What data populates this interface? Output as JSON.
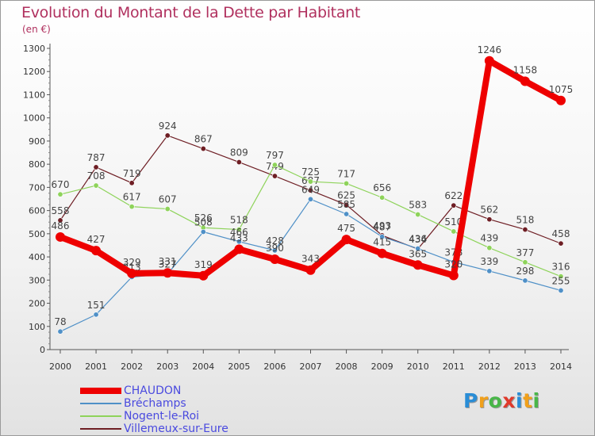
{
  "title": "Evolution du Montant de la Dette par Habitant",
  "unit_label": "(en €)",
  "chart_data": {
    "type": "line",
    "x": [
      2000,
      2001,
      2002,
      2003,
      2004,
      2005,
      2006,
      2007,
      2008,
      2009,
      2010,
      2011,
      2012,
      2013,
      2014
    ],
    "ylim": [
      0,
      1300
    ],
    "yticks": [
      0,
      100,
      200,
      300,
      400,
      500,
      600,
      700,
      800,
      900,
      1000,
      1100,
      1200,
      1300
    ],
    "grid": false,
    "legend_position": "bottom-left",
    "series": [
      {
        "name": "Villemeux-sur-Eure",
        "color": "#6e1e24",
        "values": [
          558,
          787,
          719,
          924,
          867,
          809,
          749,
          687,
          625,
          493,
          434,
          622,
          562,
          518,
          458
        ]
      },
      {
        "name": "Nogent-le-Roi",
        "color": "#8ed35a",
        "values": [
          670,
          708,
          617,
          607,
          526,
          518,
          797,
          725,
          717,
          656,
          583,
          510,
          439,
          377,
          316
        ]
      },
      {
        "name": "Bréchamps",
        "color": "#4f90c7",
        "values": [
          78,
          151,
          313,
          327,
          508,
          466,
          428,
          649,
          585,
          487,
          436,
          378,
          339,
          298,
          255
        ]
      },
      {
        "name": "CHAUDON",
        "color": "#ee0000",
        "values": [
          486,
          427,
          329,
          331,
          319,
          433,
          390,
          343,
          475,
          415,
          365,
          320,
          1246,
          1158,
          1075
        ]
      }
    ]
  },
  "logo": {
    "letters": [
      "P",
      "r",
      "o",
      "x",
      "i",
      "t",
      "i"
    ],
    "colors": [
      "#2a8dd6",
      "#f0a01b",
      "#49b649",
      "#e03a2b",
      "#2a8dd6",
      "#f0a01b",
      "#49b649"
    ]
  }
}
